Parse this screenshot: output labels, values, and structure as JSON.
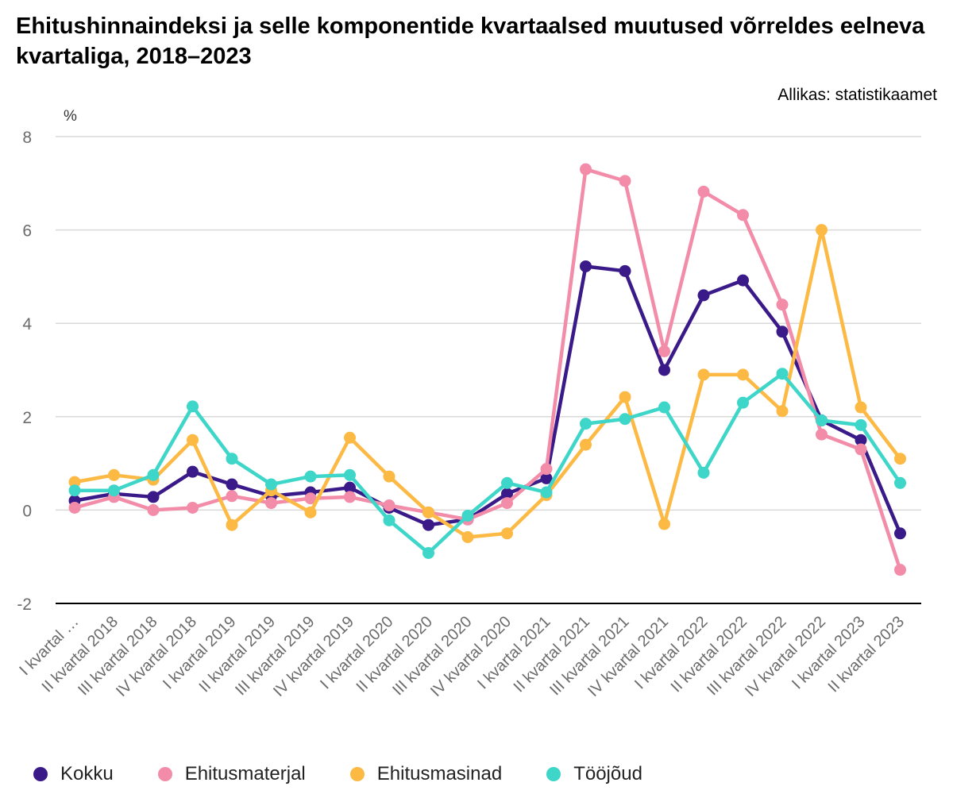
{
  "title": "Ehitushinnaindeksi ja selle komponentide kvartaalsed muutused võrreldes eelneva kvartaliga, 2018–2023",
  "source": "Allikas: statistikaamet",
  "chart_data": {
    "type": "line",
    "ylabel": "%",
    "ylim": [
      -2,
      8
    ],
    "yticks": [
      -2,
      0,
      2,
      4,
      6,
      8
    ],
    "grid": true,
    "legend_position": "bottom",
    "categories": [
      "I kvartal …",
      "II kvartal 2018",
      "III kvartal 2018",
      "IV kvartal 2018",
      "I kvartal 2019",
      "II kvartal 2019",
      "III kvartal 2019",
      "IV kvartal 2019",
      "I kvartal 2020",
      "II kvartal 2020",
      "III kvartal 2020",
      "IV kvartal 2020",
      "I kvartal 2021",
      "II kvartal 2021",
      "III kvartal 2021",
      "IV kvartal 2021",
      "I kvartal 2022",
      "II kvartal 2022",
      "III kvartal 2022",
      "IV kvartal 2022",
      "I kvartal 2023",
      "II kvartal 2023"
    ],
    "series": [
      {
        "name": "Kokku",
        "color": "#3a1a88",
        "values": [
          0.2,
          0.35,
          0.28,
          0.82,
          0.55,
          0.3,
          0.38,
          0.48,
          0.05,
          -0.32,
          -0.2,
          0.35,
          0.68,
          5.22,
          5.12,
          3.0,
          4.6,
          4.92,
          3.82,
          1.92,
          1.5,
          -0.5
        ]
      },
      {
        "name": "Ehitusmaterjal",
        "color": "#f28ca8",
        "values": [
          0.05,
          0.28,
          0.0,
          0.05,
          0.3,
          0.15,
          0.25,
          0.28,
          0.1,
          -0.05,
          -0.2,
          0.15,
          0.88,
          7.3,
          7.05,
          3.4,
          6.82,
          6.32,
          4.4,
          1.62,
          1.3,
          -1.28
        ]
      },
      {
        "name": "Ehitusmasinad",
        "color": "#fcb944",
        "values": [
          0.6,
          0.75,
          0.65,
          1.5,
          -0.32,
          0.42,
          -0.05,
          1.55,
          0.72,
          -0.05,
          -0.58,
          -0.5,
          0.32,
          1.4,
          2.42,
          -0.3,
          2.9,
          2.9,
          2.12,
          6.0,
          2.2,
          1.1
        ]
      },
      {
        "name": "Tööjõud",
        "color": "#3dd6c9",
        "values": [
          0.42,
          0.42,
          0.75,
          2.22,
          1.1,
          0.55,
          0.72,
          0.75,
          -0.22,
          -0.92,
          -0.12,
          0.58,
          0.38,
          1.85,
          1.95,
          2.2,
          0.8,
          2.3,
          2.92,
          1.92,
          1.82,
          0.58
        ]
      }
    ]
  }
}
